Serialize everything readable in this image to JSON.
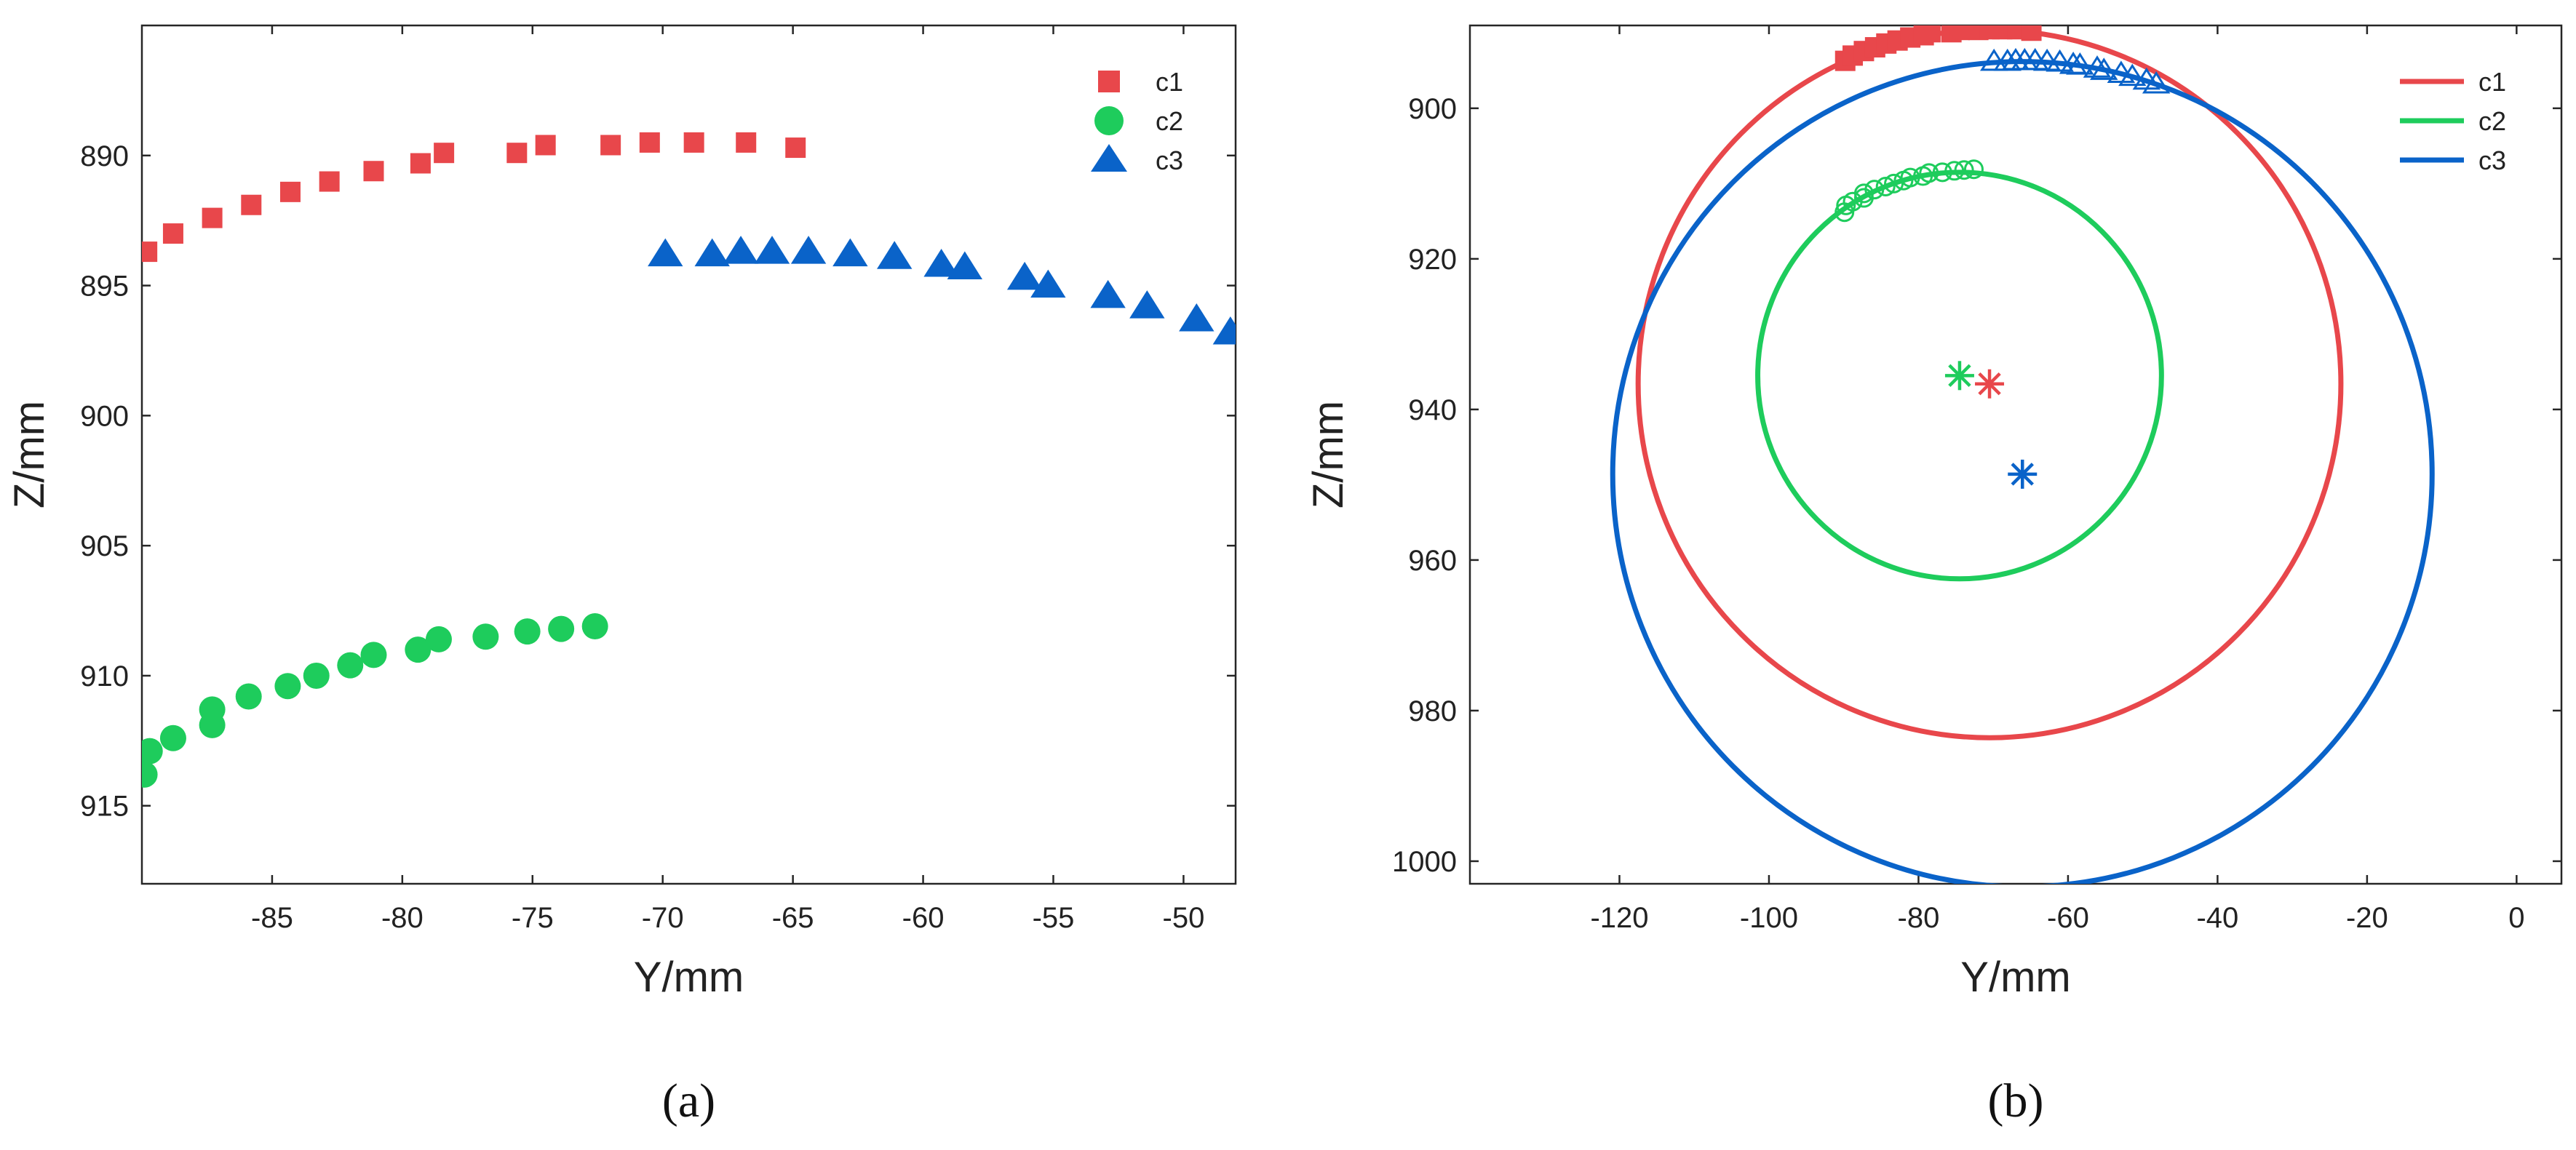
{
  "chart_data": [
    {
      "panel_label": "(a)",
      "type": "scatter",
      "xlabel": "Y/mm",
      "ylabel": "Z/mm",
      "xlim": [
        -90,
        -48
      ],
      "ylim": [
        918,
        885
      ],
      "y_reversed": true,
      "xticks": [
        -85,
        -80,
        -75,
        -70,
        -65,
        -60,
        -55,
        -50
      ],
      "yticks": [
        890,
        895,
        900,
        905,
        910,
        915
      ],
      "grid": false,
      "legend_position": "top-right",
      "series": [
        {
          "name": "c1",
          "marker": "square",
          "color": "#E8474B",
          "x": [
            -89.8,
            -88.8,
            -87.3,
            -85.8,
            -84.3,
            -82.8,
            -81.1,
            -79.3,
            -78.4,
            -75.6,
            -74.5,
            -72.0,
            -70.5,
            -68.8,
            -66.8,
            -64.9
          ],
          "y": [
            893.7,
            893.0,
            892.4,
            891.9,
            891.4,
            891.0,
            890.6,
            890.3,
            889.9,
            889.9,
            889.6,
            889.6,
            889.5,
            889.5,
            889.5,
            889.7
          ]
        },
        {
          "name": "c2",
          "marker": "circle",
          "color": "#1ECC5C",
          "x": [
            -89.9,
            -89.7,
            -88.8,
            -87.3,
            -87.3,
            -85.9,
            -84.4,
            -83.3,
            -82.0,
            -81.1,
            -79.4,
            -78.6,
            -76.8,
            -75.2,
            -73.9,
            -72.6
          ],
          "y": [
            913.8,
            912.9,
            912.4,
            911.9,
            911.3,
            910.8,
            910.4,
            910.0,
            909.6,
            909.2,
            909.0,
            908.6,
            908.5,
            908.3,
            908.2,
            908.1
          ]
        },
        {
          "name": "c3",
          "marker": "triangle",
          "color": "#0A63C9",
          "x": [
            -69.9,
            -68.1,
            -67.0,
            -65.8,
            -64.4,
            -62.8,
            -61.1,
            -59.3,
            -58.4,
            -56.1,
            -55.2,
            -52.9,
            -51.4,
            -49.5,
            -48.2
          ],
          "y": [
            893.8,
            893.8,
            893.7,
            893.7,
            893.7,
            893.8,
            893.9,
            894.2,
            894.3,
            894.7,
            895.0,
            895.4,
            895.8,
            896.3,
            896.8
          ]
        }
      ]
    },
    {
      "panel_label": "(b)",
      "type": "line",
      "xlabel": "Y/mm",
      "ylabel": "Z/mm",
      "xlim": [
        -140,
        6
      ],
      "ylim": [
        1003,
        889
      ],
      "y_reversed": true,
      "xticks": [
        -120,
        -100,
        -80,
        -60,
        -40,
        -20,
        0
      ],
      "yticks": [
        900,
        920,
        940,
        960,
        980,
        1000
      ],
      "grid": false,
      "legend_position": "top-right",
      "series": [
        {
          "name": "c1",
          "color": "#E8474B",
          "marker": "square",
          "circle": {
            "center": [
              -70.5,
              936.6
            ],
            "radius": 47.0
          },
          "points_x": [
            -89.8,
            -88.8,
            -87.3,
            -85.8,
            -84.3,
            -82.8,
            -81.1,
            -79.3,
            -78.4,
            -75.6,
            -74.5,
            -72.0,
            -70.5,
            -68.8,
            -66.8,
            -64.9
          ],
          "points_y": [
            893.7,
            893.0,
            892.4,
            891.9,
            891.4,
            891.0,
            890.6,
            890.3,
            889.9,
            889.9,
            889.6,
            889.6,
            889.5,
            889.5,
            889.5,
            889.7
          ]
        },
        {
          "name": "c2",
          "color": "#1ECC5C",
          "marker": "circle-open",
          "circle": {
            "center": [
              -74.5,
              935.5
            ],
            "radius": 27.0
          },
          "points_x": [
            -89.9,
            -89.7,
            -88.8,
            -87.3,
            -87.3,
            -85.9,
            -84.4,
            -83.3,
            -82.0,
            -81.1,
            -79.4,
            -78.6,
            -76.8,
            -75.2,
            -73.9,
            -72.6
          ],
          "points_y": [
            913.8,
            912.9,
            912.4,
            911.9,
            911.3,
            910.8,
            910.4,
            910.0,
            909.6,
            909.2,
            909.0,
            908.6,
            908.5,
            908.3,
            908.2,
            908.1
          ]
        },
        {
          "name": "c3",
          "color": "#0A63C9",
          "marker": "triangle-open",
          "circle": {
            "center": [
              -66.1,
              948.6
            ],
            "radius": 54.8
          },
          "points_x": [
            -69.9,
            -68.1,
            -67.0,
            -65.8,
            -64.4,
            -62.8,
            -61.1,
            -59.3,
            -58.4,
            -56.1,
            -55.2,
            -52.9,
            -51.4,
            -49.5,
            -48.2
          ],
          "points_y": [
            893.8,
            893.8,
            893.7,
            893.7,
            893.7,
            893.8,
            893.9,
            894.2,
            894.3,
            894.7,
            895.0,
            895.4,
            895.8,
            896.3,
            896.8
          ]
        }
      ]
    }
  ]
}
